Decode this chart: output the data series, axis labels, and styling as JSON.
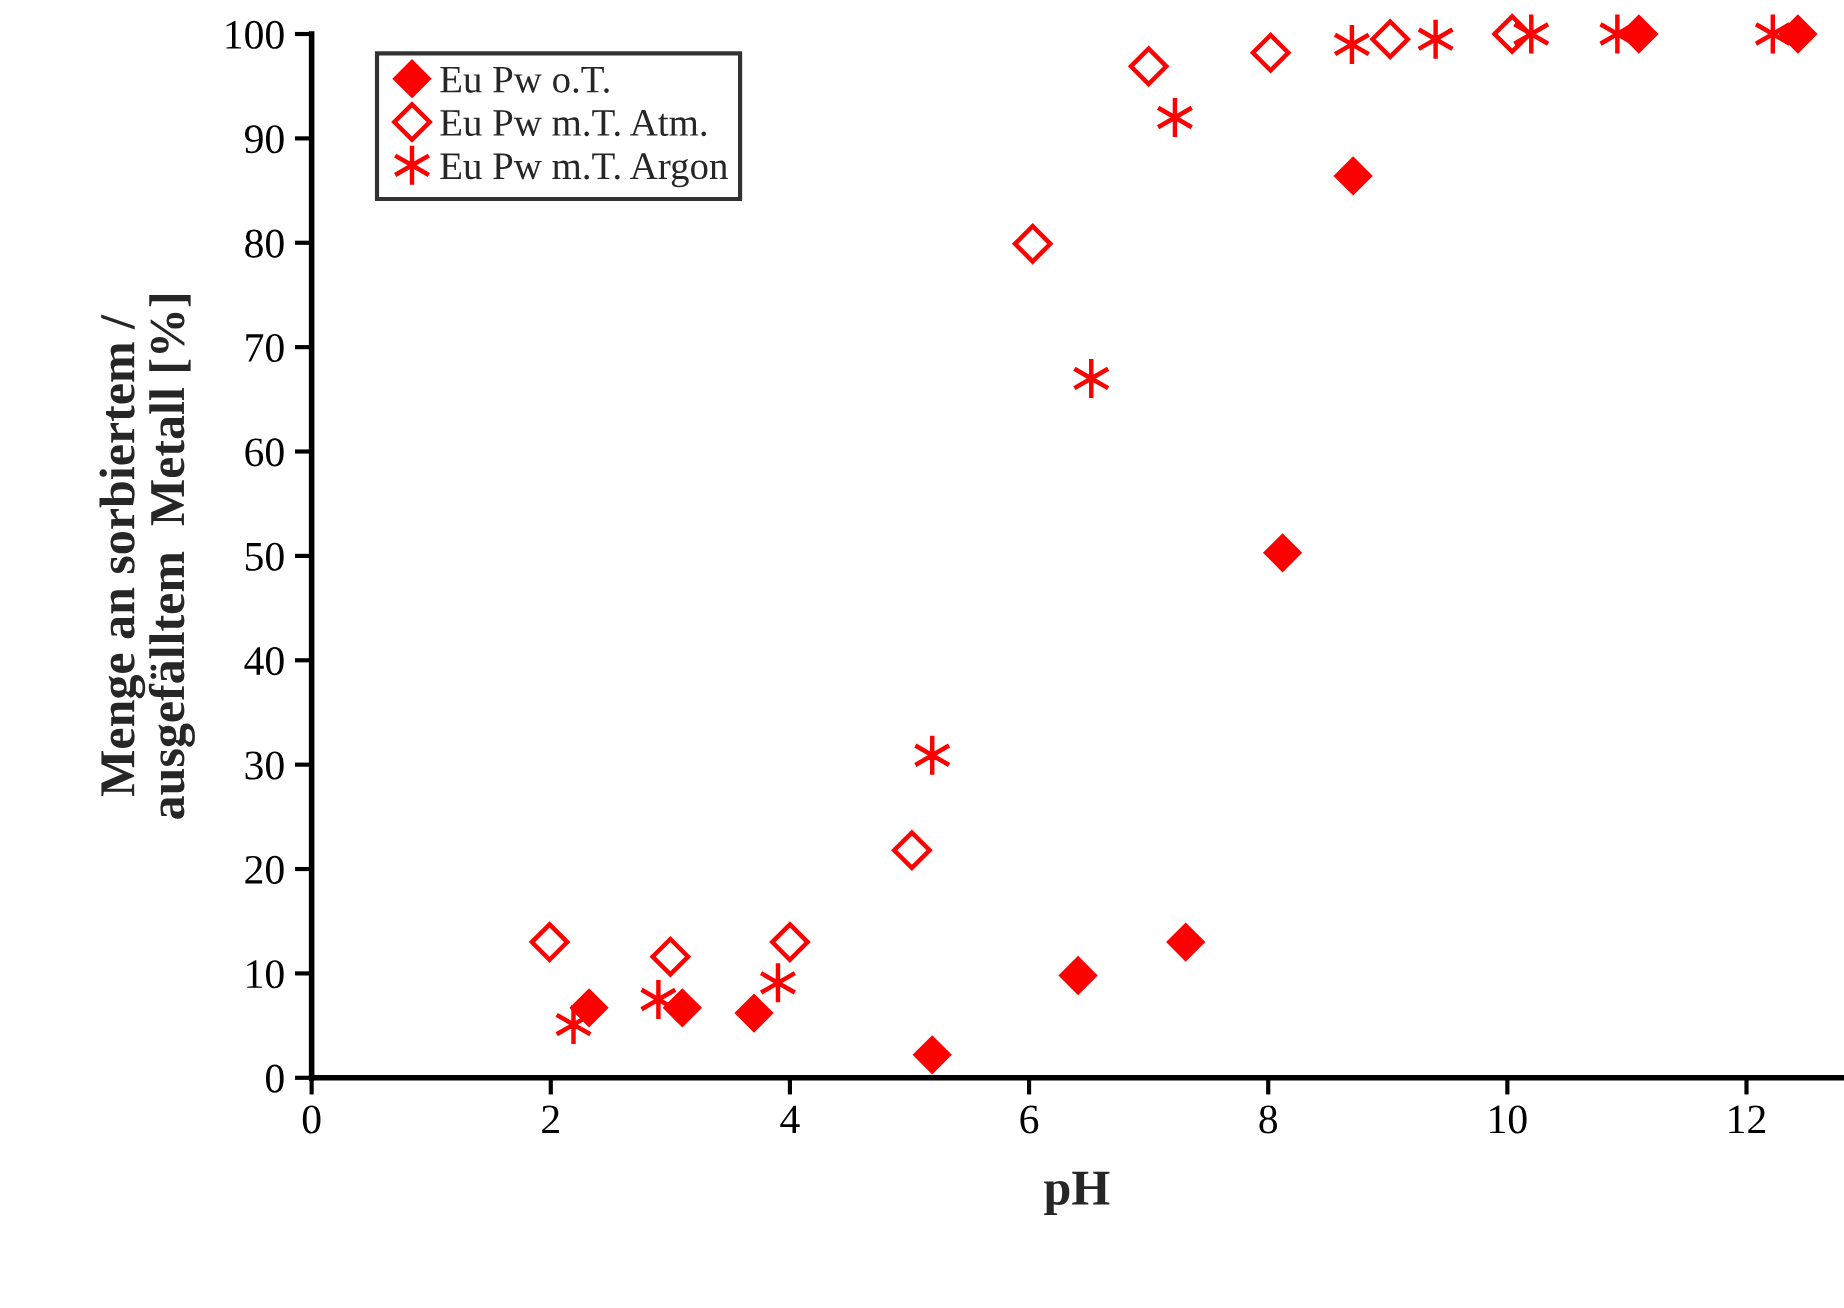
{
  "chart_data": {
    "type": "scatter",
    "xlabel": "pH",
    "ylabel": "Menge an sorbiertem /\nausgefälltem  Metall [%]",
    "xlim": [
      0,
      12.8
    ],
    "xticks": [
      0,
      2,
      4,
      6,
      8,
      10,
      12
    ],
    "ylim": [
      0,
      100
    ],
    "yticks": [
      0,
      10,
      20,
      30,
      40,
      50,
      60,
      70,
      80,
      90,
      100
    ],
    "grid": false,
    "legend": "top left",
    "series": [
      {
        "name": "Eu Pw o.T.",
        "color": "#ff0000",
        "marker": "diamond",
        "x": [
          2.32,
          3.1,
          3.7,
          5.19,
          6.41,
          7.31,
          8.12,
          8.71,
          11.1,
          12.43
        ],
        "values": [
          6.7,
          6.7,
          6.2,
          2.2,
          9.8,
          13,
          50.3,
          86.4,
          100,
          100
        ]
      },
      {
        "name": "Eu Pw m.T. Atm.",
        "color": "#ff0000",
        "marker": "diamond",
        "x": [
          1.99,
          3.0,
          4.0,
          5.02,
          6.03,
          7.0,
          8.02,
          9.02,
          10.04
        ],
        "values": [
          13,
          11.6,
          13,
          21.8,
          79.9,
          96.9,
          98.2,
          99.5,
          100
        ]
      },
      {
        "name": "Eu Pw m.T. Argon",
        "color": "#ff0000",
        "marker": "cross",
        "x": [
          2.19,
          2.9,
          3.9,
          5.19,
          6.52,
          7.22,
          8.7,
          9.4,
          10.2,
          10.92,
          12.22
        ],
        "values": [
          5.1,
          7.5,
          9.1,
          30.9,
          67,
          92,
          99,
          99.5,
          100,
          100,
          100
        ]
      }
    ]
  }
}
